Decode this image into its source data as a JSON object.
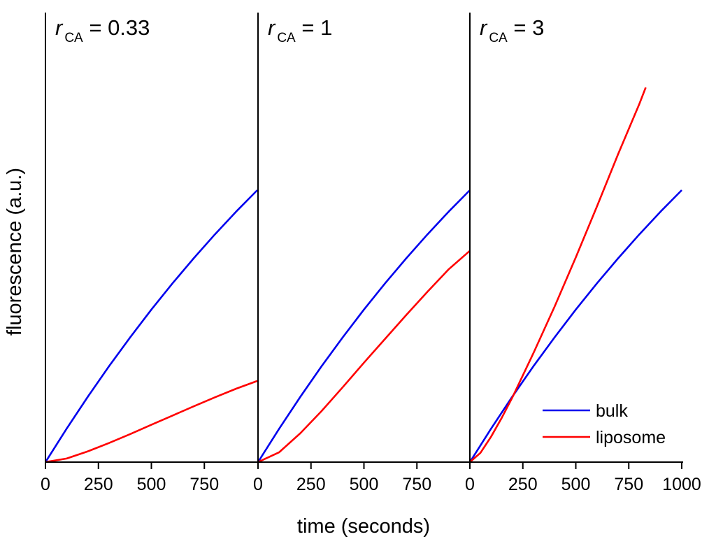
{
  "chart_data": {
    "type": "line",
    "xlabel": "time (seconds)",
    "ylabel": "fluorescence (a.u.)",
    "shared_y": true,
    "xlim": [
      0,
      1000
    ],
    "ylim": [
      0,
      1.7
    ],
    "colors": {
      "bulk": "#0000ee",
      "liposome": "#ff0000",
      "axis": "#000000"
    },
    "legend": {
      "location": "lower-right of third panel",
      "entries": [
        {
          "key": "bulk",
          "label": "bulk",
          "color": "#0000ee"
        },
        {
          "key": "liposome",
          "label": "liposome",
          "color": "#ff0000"
        }
      ]
    },
    "panels": [
      {
        "title_var": "r",
        "title_sub": "CA",
        "title_rest": " = 0.33",
        "tick_labels": [
          "0",
          "250",
          "500",
          "750"
        ],
        "tick_values": [
          0,
          250,
          500,
          750
        ],
        "series": [
          {
            "name": "bulk",
            "x": [
              0,
              100,
              200,
              300,
              400,
              500,
              600,
              700,
              800,
              900,
              1000
            ],
            "y": [
              0,
              0.112,
              0.219,
              0.321,
              0.418,
              0.511,
              0.599,
              0.683,
              0.763,
              0.839,
              0.911
            ]
          },
          {
            "name": "liposome",
            "x": [
              0,
              100,
              200,
              300,
              400,
              500,
              600,
              700,
              800,
              900,
              1000
            ],
            "y": [
              0,
              0.012,
              0.036,
              0.064,
              0.094,
              0.125,
              0.156,
              0.187,
              0.217,
              0.246,
              0.272
            ]
          }
        ]
      },
      {
        "title_var": "r",
        "title_sub": "CA",
        "title_rest": " = 1",
        "tick_labels": [
          "0",
          "250",
          "500",
          "750"
        ],
        "tick_values": [
          0,
          250,
          500,
          750
        ],
        "series": [
          {
            "name": "bulk",
            "x": [
              0,
              100,
              200,
              300,
              400,
              500,
              600,
              700,
              800,
              900,
              1000
            ],
            "y": [
              0,
              0.112,
              0.219,
              0.321,
              0.418,
              0.511,
              0.599,
              0.683,
              0.763,
              0.839,
              0.911
            ]
          },
          {
            "name": "liposome",
            "x": [
              0,
              100,
              200,
              300,
              400,
              500,
              600,
              700,
              800,
              900,
              1000
            ],
            "y": [
              0,
              0.033,
              0.097,
              0.171,
              0.251,
              0.333,
              0.413,
              0.493,
              0.571,
              0.646,
              0.708
            ]
          }
        ]
      },
      {
        "title_var": "r",
        "title_sub": "CA",
        "title_rest": " = 3",
        "tick_labels": [
          "0",
          "250",
          "500",
          "750",
          "1000"
        ],
        "tick_values": [
          0,
          250,
          500,
          750,
          1000
        ],
        "series": [
          {
            "name": "bulk",
            "x": [
              0,
              100,
              200,
              300,
              400,
              500,
              600,
              700,
              800,
              900,
              1000
            ],
            "y": [
              0,
              0.112,
              0.219,
              0.321,
              0.418,
              0.511,
              0.599,
              0.683,
              0.763,
              0.839,
              0.911
            ]
          },
          {
            "name": "liposome",
            "x": [
              0,
              50,
              100,
              150,
              200,
              300,
              400,
              500,
              600,
              700,
              800,
              830
            ],
            "y": [
              0,
              0.031,
              0.085,
              0.148,
              0.216,
              0.365,
              0.521,
              0.686,
              0.857,
              1.032,
              1.2,
              1.255
            ]
          }
        ]
      }
    ]
  }
}
